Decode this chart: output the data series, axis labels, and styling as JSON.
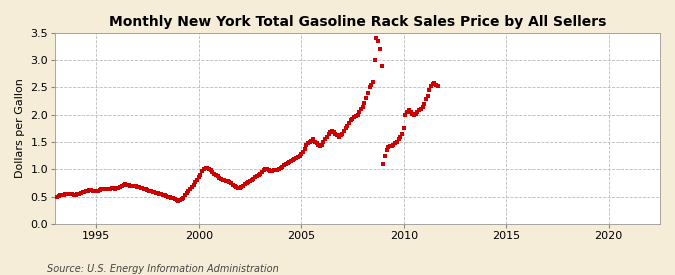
{
  "title": "Monthly New York Total Gasoline Rack Sales Price by All Sellers",
  "ylabel": "Dollars per Gallon",
  "source": "Source: U.S. Energy Information Administration",
  "background_color": "#F5EDD8",
  "plot_bg_color": "#FFFFFF",
  "marker_color": "#CC0000",
  "marker_size": 2.5,
  "xlim": [
    1993.0,
    2022.5
  ],
  "ylim": [
    0.0,
    3.5
  ],
  "yticks": [
    0.0,
    0.5,
    1.0,
    1.5,
    2.0,
    2.5,
    3.0,
    3.5
  ],
  "xticks": [
    1995,
    2000,
    2005,
    2010,
    2015,
    2020
  ],
  "data": [
    [
      1993.08,
      0.5
    ],
    [
      1993.17,
      0.51
    ],
    [
      1993.25,
      0.52
    ],
    [
      1993.33,
      0.53
    ],
    [
      1993.42,
      0.53
    ],
    [
      1993.5,
      0.54
    ],
    [
      1993.58,
      0.55
    ],
    [
      1993.67,
      0.54
    ],
    [
      1993.75,
      0.54
    ],
    [
      1993.83,
      0.54
    ],
    [
      1993.92,
      0.53
    ],
    [
      1994.0,
      0.53
    ],
    [
      1994.08,
      0.54
    ],
    [
      1994.17,
      0.55
    ],
    [
      1994.25,
      0.57
    ],
    [
      1994.33,
      0.58
    ],
    [
      1994.42,
      0.59
    ],
    [
      1994.5,
      0.6
    ],
    [
      1994.58,
      0.61
    ],
    [
      1994.67,
      0.62
    ],
    [
      1994.75,
      0.62
    ],
    [
      1994.83,
      0.61
    ],
    [
      1994.92,
      0.6
    ],
    [
      1995.0,
      0.6
    ],
    [
      1995.08,
      0.61
    ],
    [
      1995.17,
      0.62
    ],
    [
      1995.25,
      0.63
    ],
    [
      1995.33,
      0.64
    ],
    [
      1995.42,
      0.64
    ],
    [
      1995.5,
      0.63
    ],
    [
      1995.58,
      0.63
    ],
    [
      1995.67,
      0.64
    ],
    [
      1995.75,
      0.65
    ],
    [
      1995.83,
      0.65
    ],
    [
      1995.92,
      0.64
    ],
    [
      1996.0,
      0.65
    ],
    [
      1996.08,
      0.66
    ],
    [
      1996.17,
      0.68
    ],
    [
      1996.25,
      0.7
    ],
    [
      1996.33,
      0.72
    ],
    [
      1996.42,
      0.73
    ],
    [
      1996.5,
      0.72
    ],
    [
      1996.58,
      0.71
    ],
    [
      1996.67,
      0.7
    ],
    [
      1996.75,
      0.7
    ],
    [
      1996.83,
      0.7
    ],
    [
      1996.92,
      0.69
    ],
    [
      1997.0,
      0.68
    ],
    [
      1997.08,
      0.67
    ],
    [
      1997.17,
      0.66
    ],
    [
      1997.25,
      0.65
    ],
    [
      1997.33,
      0.64
    ],
    [
      1997.42,
      0.63
    ],
    [
      1997.5,
      0.62
    ],
    [
      1997.58,
      0.61
    ],
    [
      1997.67,
      0.6
    ],
    [
      1997.75,
      0.59
    ],
    [
      1997.83,
      0.58
    ],
    [
      1997.92,
      0.57
    ],
    [
      1998.0,
      0.56
    ],
    [
      1998.08,
      0.55
    ],
    [
      1998.17,
      0.54
    ],
    [
      1998.25,
      0.53
    ],
    [
      1998.33,
      0.52
    ],
    [
      1998.42,
      0.51
    ],
    [
      1998.5,
      0.5
    ],
    [
      1998.58,
      0.49
    ],
    [
      1998.67,
      0.48
    ],
    [
      1998.75,
      0.47
    ],
    [
      1998.83,
      0.45
    ],
    [
      1998.92,
      0.43
    ],
    [
      1999.0,
      0.42
    ],
    [
      1999.08,
      0.43
    ],
    [
      1999.17,
      0.45
    ],
    [
      1999.25,
      0.48
    ],
    [
      1999.33,
      0.52
    ],
    [
      1999.42,
      0.56
    ],
    [
      1999.5,
      0.6
    ],
    [
      1999.58,
      0.64
    ],
    [
      1999.67,
      0.68
    ],
    [
      1999.75,
      0.72
    ],
    [
      1999.83,
      0.76
    ],
    [
      1999.92,
      0.8
    ],
    [
      2000.0,
      0.85
    ],
    [
      2000.08,
      0.9
    ],
    [
      2000.17,
      0.96
    ],
    [
      2000.25,
      1.0
    ],
    [
      2000.33,
      1.02
    ],
    [
      2000.42,
      1.03
    ],
    [
      2000.5,
      1.01
    ],
    [
      2000.58,
      0.98
    ],
    [
      2000.67,
      0.95
    ],
    [
      2000.75,
      0.92
    ],
    [
      2000.83,
      0.9
    ],
    [
      2000.92,
      0.87
    ],
    [
      2001.0,
      0.84
    ],
    [
      2001.08,
      0.82
    ],
    [
      2001.17,
      0.8
    ],
    [
      2001.25,
      0.8
    ],
    [
      2001.33,
      0.79
    ],
    [
      2001.42,
      0.78
    ],
    [
      2001.5,
      0.76
    ],
    [
      2001.58,
      0.74
    ],
    [
      2001.67,
      0.72
    ],
    [
      2001.75,
      0.7
    ],
    [
      2001.83,
      0.68
    ],
    [
      2001.92,
      0.66
    ],
    [
      2002.0,
      0.65
    ],
    [
      2002.08,
      0.67
    ],
    [
      2002.17,
      0.7
    ],
    [
      2002.25,
      0.73
    ],
    [
      2002.33,
      0.75
    ],
    [
      2002.42,
      0.77
    ],
    [
      2002.5,
      0.78
    ],
    [
      2002.58,
      0.8
    ],
    [
      2002.67,
      0.82
    ],
    [
      2002.75,
      0.85
    ],
    [
      2002.83,
      0.88
    ],
    [
      2002.92,
      0.9
    ],
    [
      2003.0,
      0.92
    ],
    [
      2003.08,
      0.95
    ],
    [
      2003.17,
      0.98
    ],
    [
      2003.25,
      1.0
    ],
    [
      2003.33,
      1.0
    ],
    [
      2003.42,
      0.98
    ],
    [
      2003.5,
      0.96
    ],
    [
      2003.58,
      0.97
    ],
    [
      2003.67,
      0.98
    ],
    [
      2003.75,
      0.98
    ],
    [
      2003.83,
      0.99
    ],
    [
      2003.92,
      1.0
    ],
    [
      2004.0,
      1.02
    ],
    [
      2004.08,
      1.05
    ],
    [
      2004.17,
      1.08
    ],
    [
      2004.25,
      1.1
    ],
    [
      2004.33,
      1.12
    ],
    [
      2004.42,
      1.14
    ],
    [
      2004.5,
      1.15
    ],
    [
      2004.58,
      1.17
    ],
    [
      2004.67,
      1.18
    ],
    [
      2004.75,
      1.2
    ],
    [
      2004.83,
      1.22
    ],
    [
      2004.92,
      1.25
    ],
    [
      2005.0,
      1.28
    ],
    [
      2005.08,
      1.32
    ],
    [
      2005.17,
      1.38
    ],
    [
      2005.25,
      1.45
    ],
    [
      2005.33,
      1.48
    ],
    [
      2005.42,
      1.5
    ],
    [
      2005.5,
      1.52
    ],
    [
      2005.58,
      1.55
    ],
    [
      2005.67,
      1.5
    ],
    [
      2005.75,
      1.48
    ],
    [
      2005.83,
      1.45
    ],
    [
      2005.92,
      1.42
    ],
    [
      2006.0,
      1.45
    ],
    [
      2006.08,
      1.5
    ],
    [
      2006.17,
      1.55
    ],
    [
      2006.25,
      1.6
    ],
    [
      2006.33,
      1.65
    ],
    [
      2006.42,
      1.68
    ],
    [
      2006.5,
      1.7
    ],
    [
      2006.58,
      1.68
    ],
    [
      2006.67,
      1.65
    ],
    [
      2006.75,
      1.62
    ],
    [
      2006.83,
      1.6
    ],
    [
      2006.92,
      1.62
    ],
    [
      2007.0,
      1.65
    ],
    [
      2007.08,
      1.7
    ],
    [
      2007.17,
      1.75
    ],
    [
      2007.25,
      1.8
    ],
    [
      2007.33,
      1.85
    ],
    [
      2007.42,
      1.9
    ],
    [
      2007.5,
      1.92
    ],
    [
      2007.58,
      1.95
    ],
    [
      2007.67,
      1.98
    ],
    [
      2007.75,
      2.0
    ],
    [
      2007.83,
      2.05
    ],
    [
      2007.92,
      2.1
    ],
    [
      2008.0,
      2.15
    ],
    [
      2008.08,
      2.22
    ],
    [
      2008.17,
      2.3
    ],
    [
      2008.25,
      2.4
    ],
    [
      2008.33,
      2.5
    ],
    [
      2008.42,
      2.55
    ],
    [
      2008.5,
      2.6
    ],
    [
      2008.58,
      3.0
    ],
    [
      2008.67,
      3.4
    ],
    [
      2008.75,
      3.35
    ],
    [
      2008.83,
      3.2
    ],
    [
      2008.92,
      2.9
    ],
    [
      2009.0,
      1.1
    ],
    [
      2009.08,
      1.25
    ],
    [
      2009.17,
      1.35
    ],
    [
      2009.25,
      1.4
    ],
    [
      2009.33,
      1.42
    ],
    [
      2009.42,
      1.43
    ],
    [
      2009.5,
      1.45
    ],
    [
      2009.58,
      1.48
    ],
    [
      2009.67,
      1.5
    ],
    [
      2009.75,
      1.55
    ],
    [
      2009.83,
      1.6
    ],
    [
      2009.92,
      1.65
    ],
    [
      2010.0,
      1.75
    ],
    [
      2010.08,
      2.0
    ],
    [
      2010.17,
      2.05
    ],
    [
      2010.25,
      2.08
    ],
    [
      2010.33,
      2.05
    ],
    [
      2010.42,
      2.02
    ],
    [
      2010.5,
      2.0
    ],
    [
      2010.58,
      2.02
    ],
    [
      2010.67,
      2.05
    ],
    [
      2010.75,
      2.08
    ],
    [
      2010.83,
      2.1
    ],
    [
      2010.92,
      2.15
    ],
    [
      2011.0,
      2.2
    ],
    [
      2011.08,
      2.28
    ],
    [
      2011.17,
      2.35
    ],
    [
      2011.25,
      2.45
    ],
    [
      2011.33,
      2.52
    ],
    [
      2011.42,
      2.57
    ],
    [
      2011.5,
      2.58
    ],
    [
      2011.58,
      2.55
    ],
    [
      2011.67,
      2.52
    ]
  ]
}
